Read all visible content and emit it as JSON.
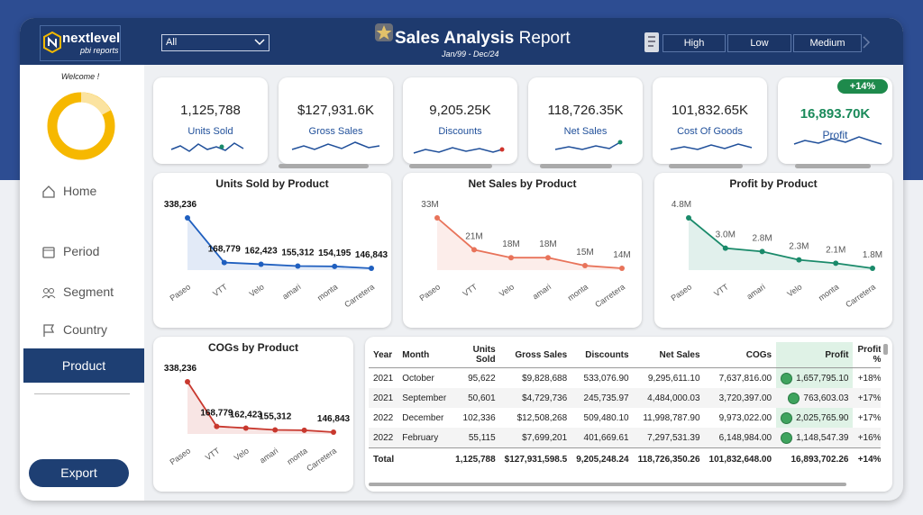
{
  "header": {
    "logo": "nextlevel",
    "logo_sub": "pbi reports",
    "filter": "All",
    "title_bold": "Sales Analysis",
    "title_rest": "Report",
    "date_range": "Jan/99 - Dec/24",
    "buttons": [
      "High",
      "Low",
      "Medium"
    ]
  },
  "sidebar": {
    "welcome": "Welcome !",
    "nav": [
      "Home",
      "Period",
      "Segment",
      "Country",
      "Product"
    ],
    "export": "Export"
  },
  "kpis": [
    {
      "value": "1,125,788",
      "label": "Units Sold"
    },
    {
      "value": "$127,931.6K",
      "label": "Gross Sales"
    },
    {
      "value": "9,205.25K",
      "label": "Discounts"
    },
    {
      "value": "118,726.35K",
      "label": "Net Sales"
    },
    {
      "value": "101,832.65K",
      "label": "Cost Of Goods"
    },
    {
      "value": "16,893.70K",
      "label": "Profit",
      "badge": "+14%"
    }
  ],
  "chart_data": [
    {
      "type": "line",
      "title": "Units Sold by Product",
      "categories": [
        "Paseo",
        "VTT",
        "Velo",
        "amari",
        "monta",
        "Carretera"
      ],
      "values": [
        338236,
        168779,
        162423,
        155312,
        154195,
        146843
      ],
      "value_labels": [
        "338,236",
        "168,779",
        "162,423",
        "155,312",
        "154,195",
        "146,843"
      ],
      "color": "#1f5fbf"
    },
    {
      "type": "line",
      "title": "Net Sales by Product",
      "categories": [
        "Paseo",
        "VTT",
        "Velo",
        "amari",
        "monta",
        "Carretera"
      ],
      "values": [
        33000000,
        21000000,
        18000000,
        18000000,
        15000000,
        14000000
      ],
      "value_labels": [
        "33M",
        "21M",
        "18M",
        "18M",
        "15M",
        "14M"
      ],
      "color": "#e8735a"
    },
    {
      "type": "line",
      "title": "Profit by Product",
      "categories": [
        "Paseo",
        "VTT",
        "amari",
        "Velo",
        "monta",
        "Carretera"
      ],
      "values": [
        4800000,
        3000000,
        2800000,
        2300000,
        2100000,
        1800000
      ],
      "value_labels": [
        "4.8M",
        "3.0M",
        "2.8M",
        "2.3M",
        "2.1M",
        "1.8M"
      ],
      "color": "#1a8a6a"
    },
    {
      "type": "line",
      "title": "COGs by Product",
      "categories": [
        "Paseo",
        "VTT",
        "Velo",
        "amari",
        "monta",
        "Carretera"
      ],
      "values": [
        338236,
        168779,
        162423,
        155312,
        154195,
        146843
      ],
      "value_labels": [
        "338,236",
        "168,779",
        "162,423",
        "155,312",
        null,
        "146,843"
      ],
      "color": "#c8382e"
    }
  ],
  "table": {
    "columns": [
      "Year",
      "Month",
      "Units Sold",
      "Gross Sales",
      "Discounts",
      "Net Sales",
      "COGs",
      "Profit",
      "Profit %"
    ],
    "rows": [
      [
        "2021",
        "October",
        "95,622",
        "$9,828,688",
        "533,076.90",
        "9,295,611.10",
        "7,637,816.00",
        "1,657,795.10",
        "+18%"
      ],
      [
        "2021",
        "September",
        "50,601",
        "$4,729,736",
        "245,735.97",
        "4,484,000.03",
        "3,720,397.00",
        "763,603.03",
        "+17%"
      ],
      [
        "2022",
        "December",
        "102,336",
        "$12,508,268",
        "509,480.10",
        "11,998,787.90",
        "9,973,022.00",
        "2,025,765.90",
        "+17%"
      ],
      [
        "2022",
        "February",
        "55,115",
        "$7,699,201",
        "401,669.61",
        "7,297,531.39",
        "6,148,984.00",
        "1,148,547.39",
        "+16%"
      ]
    ],
    "total": {
      "label": "Total",
      "cells": [
        "1,125,788",
        "$127,931,598.5",
        "9,205,248.24",
        "118,726,350.26",
        "101,832,648.00",
        "16,893,702.26",
        "+14%"
      ]
    }
  }
}
